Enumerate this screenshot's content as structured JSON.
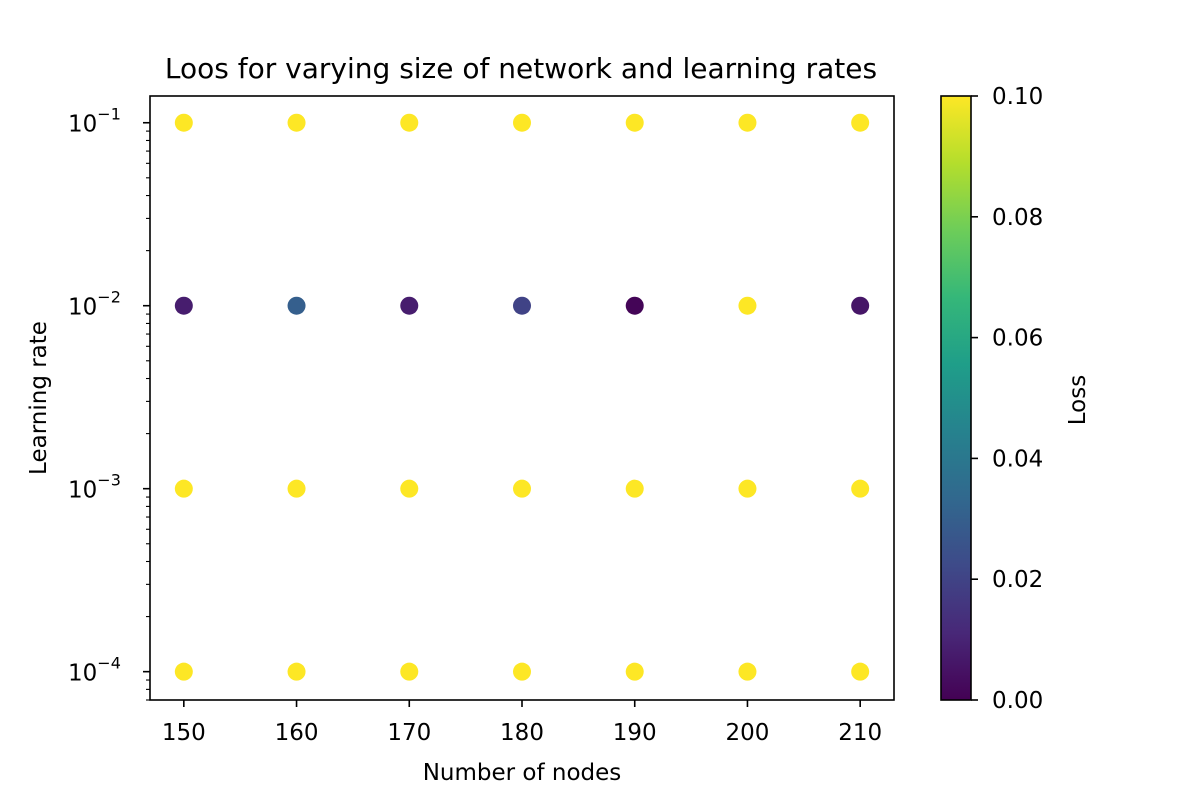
{
  "chart_data": {
    "type": "scatter",
    "title": "Loos for varying size of network and learning rates",
    "xlabel": "Number of nodes",
    "ylabel": "Learning rate",
    "xlim": [
      147,
      213
    ],
    "ylim": [
      7e-05,
      0.14
    ],
    "yscale": "log",
    "grid": false,
    "xticks": [
      150,
      160,
      170,
      180,
      190,
      200,
      210
    ],
    "xtick_labels": [
      "150",
      "160",
      "170",
      "180",
      "190",
      "200",
      "210"
    ],
    "yticks": [
      0.0001,
      0.001,
      0.01,
      0.1
    ],
    "ytick_labels": [
      {
        "base": "10",
        "exp": "−4"
      },
      {
        "base": "10",
        "exp": "−3"
      },
      {
        "base": "10",
        "exp": "−2"
      },
      {
        "base": "10",
        "exp": "−1"
      }
    ],
    "colorbar": {
      "label": "Loss",
      "range": [
        0.0,
        0.1
      ],
      "colormap": "viridis",
      "ticks": [
        0.0,
        0.02,
        0.04,
        0.06,
        0.08,
        0.1
      ],
      "tick_labels": [
        "0.00",
        "0.02",
        "0.04",
        "0.06",
        "0.08",
        "0.10"
      ]
    },
    "points": [
      {
        "x": 150,
        "y": 0.1,
        "loss": 0.1
      },
      {
        "x": 160,
        "y": 0.1,
        "loss": 0.1
      },
      {
        "x": 170,
        "y": 0.1,
        "loss": 0.1
      },
      {
        "x": 180,
        "y": 0.1,
        "loss": 0.1
      },
      {
        "x": 190,
        "y": 0.1,
        "loss": 0.1
      },
      {
        "x": 200,
        "y": 0.1,
        "loss": 0.1
      },
      {
        "x": 210,
        "y": 0.1,
        "loss": 0.1
      },
      {
        "x": 150,
        "y": 0.01,
        "loss": 0.008
      },
      {
        "x": 160,
        "y": 0.01,
        "loss": 0.03
      },
      {
        "x": 170,
        "y": 0.01,
        "loss": 0.008
      },
      {
        "x": 180,
        "y": 0.01,
        "loss": 0.02
      },
      {
        "x": 190,
        "y": 0.01,
        "loss": 0.001
      },
      {
        "x": 200,
        "y": 0.01,
        "loss": 0.1
      },
      {
        "x": 210,
        "y": 0.01,
        "loss": 0.006
      },
      {
        "x": 150,
        "y": 0.001,
        "loss": 0.1
      },
      {
        "x": 160,
        "y": 0.001,
        "loss": 0.1
      },
      {
        "x": 170,
        "y": 0.001,
        "loss": 0.1
      },
      {
        "x": 180,
        "y": 0.001,
        "loss": 0.1
      },
      {
        "x": 190,
        "y": 0.001,
        "loss": 0.1
      },
      {
        "x": 200,
        "y": 0.001,
        "loss": 0.1
      },
      {
        "x": 210,
        "y": 0.001,
        "loss": 0.1
      },
      {
        "x": 150,
        "y": 0.0001,
        "loss": 0.1
      },
      {
        "x": 160,
        "y": 0.0001,
        "loss": 0.1
      },
      {
        "x": 170,
        "y": 0.0001,
        "loss": 0.1
      },
      {
        "x": 180,
        "y": 0.0001,
        "loss": 0.1
      },
      {
        "x": 190,
        "y": 0.0001,
        "loss": 0.1
      },
      {
        "x": 200,
        "y": 0.0001,
        "loss": 0.1
      },
      {
        "x": 210,
        "y": 0.0001,
        "loss": 0.1
      }
    ]
  }
}
